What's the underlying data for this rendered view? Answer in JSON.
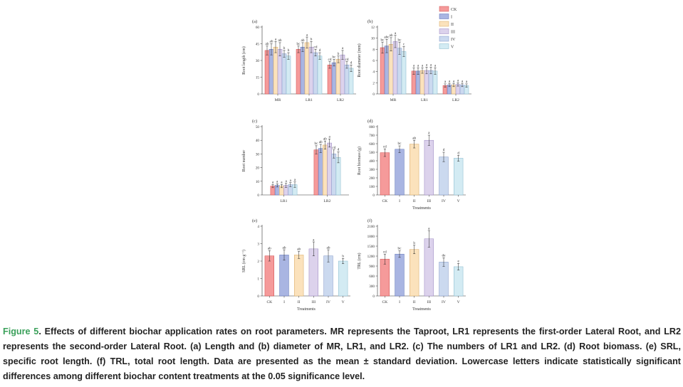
{
  "legend": {
    "labels": [
      "CK",
      "I",
      "II",
      "III",
      "IV",
      "V"
    ],
    "colors": [
      "#f59a9a",
      "#a9b5e2",
      "#fbe2bc",
      "#dcd2ec",
      "#cbd9ef",
      "#d3ebf3"
    ],
    "edges": [
      "#d04a4a",
      "#5a6fb5",
      "#d8a860",
      "#9a86c0",
      "#7f95c7",
      "#86b8cc"
    ]
  },
  "chart_data": [
    {
      "id": "a",
      "panel_label": "(a)",
      "type": "bar",
      "ylabel": "Root length (cm)",
      "xlabel": "",
      "ylim": [
        0,
        60
      ],
      "yticks": [
        0,
        15,
        30,
        45,
        60
      ],
      "groups": [
        "MR",
        "LR1",
        "LR2"
      ],
      "series": [
        "CK",
        "I",
        "II",
        "III",
        "IV",
        "V"
      ],
      "values": [
        [
          39,
          40,
          42,
          40,
          36,
          34
        ],
        [
          40,
          42,
          46,
          42,
          37,
          34
        ],
        [
          26,
          28,
          31,
          35,
          26,
          23
        ]
      ],
      "errors": [
        [
          4,
          5,
          5,
          6,
          3,
          3
        ],
        [
          3,
          4,
          5,
          5,
          3,
          3
        ],
        [
          3,
          3,
          3,
          4,
          3,
          3
        ]
      ],
      "letters": [
        [
          "ab",
          "ab",
          "a",
          "ab",
          "b",
          "b"
        ],
        [
          "bc",
          "ab",
          "a",
          "b",
          "cd",
          "d"
        ],
        [
          "cd",
          "bc",
          "b",
          "a",
          "cd",
          "d"
        ]
      ]
    },
    {
      "id": "b",
      "panel_label": "(b)",
      "type": "bar",
      "ylabel": "Root diameter (mm)",
      "xlabel": "",
      "ylim": [
        0,
        12
      ],
      "yticks": [
        0,
        2,
        4,
        6,
        8,
        10,
        12
      ],
      "groups": [
        "MR",
        "LR1",
        "LR2"
      ],
      "series": [
        "CK",
        "I",
        "II",
        "III",
        "IV",
        "V"
      ],
      "values": [
        [
          8.3,
          8.6,
          8.9,
          9.4,
          8.2,
          7.6
        ],
        [
          4.1,
          4.1,
          4.2,
          4.2,
          4.2,
          4.1
        ],
        [
          1.5,
          1.6,
          1.6,
          1.7,
          1.6,
          1.5
        ]
      ],
      "errors": [
        [
          1.0,
          1.2,
          1.2,
          1.1,
          1.1,
          0.9
        ],
        [
          0.6,
          0.6,
          0.5,
          0.6,
          0.6,
          0.6
        ],
        [
          0.3,
          0.3,
          0.3,
          0.3,
          0.3,
          0.3
        ]
      ],
      "letters": [
        [
          "bc",
          "abc",
          "ab",
          "a",
          "bc",
          "c"
        ],
        [
          "a",
          "a",
          "a",
          "a",
          "a",
          "a"
        ],
        [
          "a",
          "a",
          "a",
          "a",
          "a",
          "a"
        ]
      ]
    },
    {
      "id": "c",
      "panel_label": "(c)",
      "type": "bar",
      "ylabel": "Root number",
      "xlabel": "",
      "ylim": [
        0,
        50
      ],
      "yticks": [
        0,
        10,
        20,
        30,
        40,
        50
      ],
      "groups": [
        "LR1",
        "LR2"
      ],
      "series": [
        "CK",
        "I",
        "II",
        "III",
        "IV",
        "V"
      ],
      "values": [
        [
          6.5,
          7,
          6.5,
          7,
          7.5,
          7.5
        ],
        [
          33,
          34,
          36.5,
          38,
          30,
          27.5
        ]
      ],
      "errors": [
        [
          1.2,
          1.2,
          1.2,
          1.5,
          1.5,
          2
        ],
        [
          3,
          3,
          3,
          3,
          3,
          4
        ]
      ],
      "letters": [
        [
          "a",
          "a",
          "a",
          "a",
          "a",
          "a"
        ],
        [
          "bc",
          "ab",
          "ab",
          "a",
          "cd",
          "d"
        ]
      ]
    },
    {
      "id": "d",
      "panel_label": "(d)",
      "type": "bar",
      "ylabel": "Root biomass (g)",
      "xlabel": "Treatments",
      "ylim": [
        0,
        800
      ],
      "yticks": [
        0,
        100,
        200,
        300,
        400,
        500,
        600,
        700,
        800
      ],
      "categories": [
        "CK",
        "I",
        "II",
        "III",
        "IV",
        "V"
      ],
      "values": [
        495,
        535,
        595,
        640,
        445,
        430
      ],
      "errors": [
        45,
        40,
        45,
        60,
        55,
        35
      ],
      "letters": [
        "cd",
        "bc",
        "ab",
        "a",
        "d",
        "d"
      ]
    },
    {
      "id": "e",
      "panel_label": "(e)",
      "type": "bar",
      "ylabel": "SRL (cm g⁻¹)",
      "xlabel": "Treatments",
      "ylim": [
        0,
        4
      ],
      "yticks": [
        0,
        1,
        2,
        3,
        4
      ],
      "categories": [
        "CK",
        "I",
        "II",
        "III",
        "IV",
        "V"
      ],
      "values": [
        2.3,
        2.35,
        2.35,
        2.7,
        2.3,
        2.0
      ],
      "errors": [
        0.3,
        0.3,
        0.2,
        0.4,
        0.35,
        0.15
      ],
      "letters": [
        "ab",
        "ab",
        "ab",
        "a",
        "ab",
        "b"
      ]
    },
    {
      "id": "f",
      "panel_label": "(f)",
      "type": "bar",
      "ylabel": "TRL (cm)",
      "xlabel": "Treatments",
      "ylim": [
        0,
        2100
      ],
      "yticks": [
        0,
        300,
        600,
        900,
        1200,
        1500,
        1800,
        2100
      ],
      "categories": [
        "CK",
        "I",
        "II",
        "III",
        "IV",
        "V"
      ],
      "values": [
        1110,
        1260,
        1400,
        1720,
        1020,
        880
      ],
      "errors": [
        150,
        100,
        130,
        250,
        130,
        100
      ],
      "letters": [
        "cd",
        "bc",
        "b",
        "a",
        "de",
        "e"
      ]
    }
  ],
  "caption": {
    "label": "Figure 5",
    "text": ". Effects of different biochar application rates on root parameters. MR represents the Taproot, LR1 represents the first-order Lateral Root, and LR2 represents the second-order Lateral Root. (a) Length and (b) diameter of MR, LR1, and LR2. (c) The numbers of LR1 and LR2. (d) Root biomass. (e) SRL, specific root length. (f) TRL, total root length. Data are presented as the mean ± standard deviation. Lowercase letters indicate statistically significant differences among different biochar content treatments at the 0.05 significance level."
  }
}
